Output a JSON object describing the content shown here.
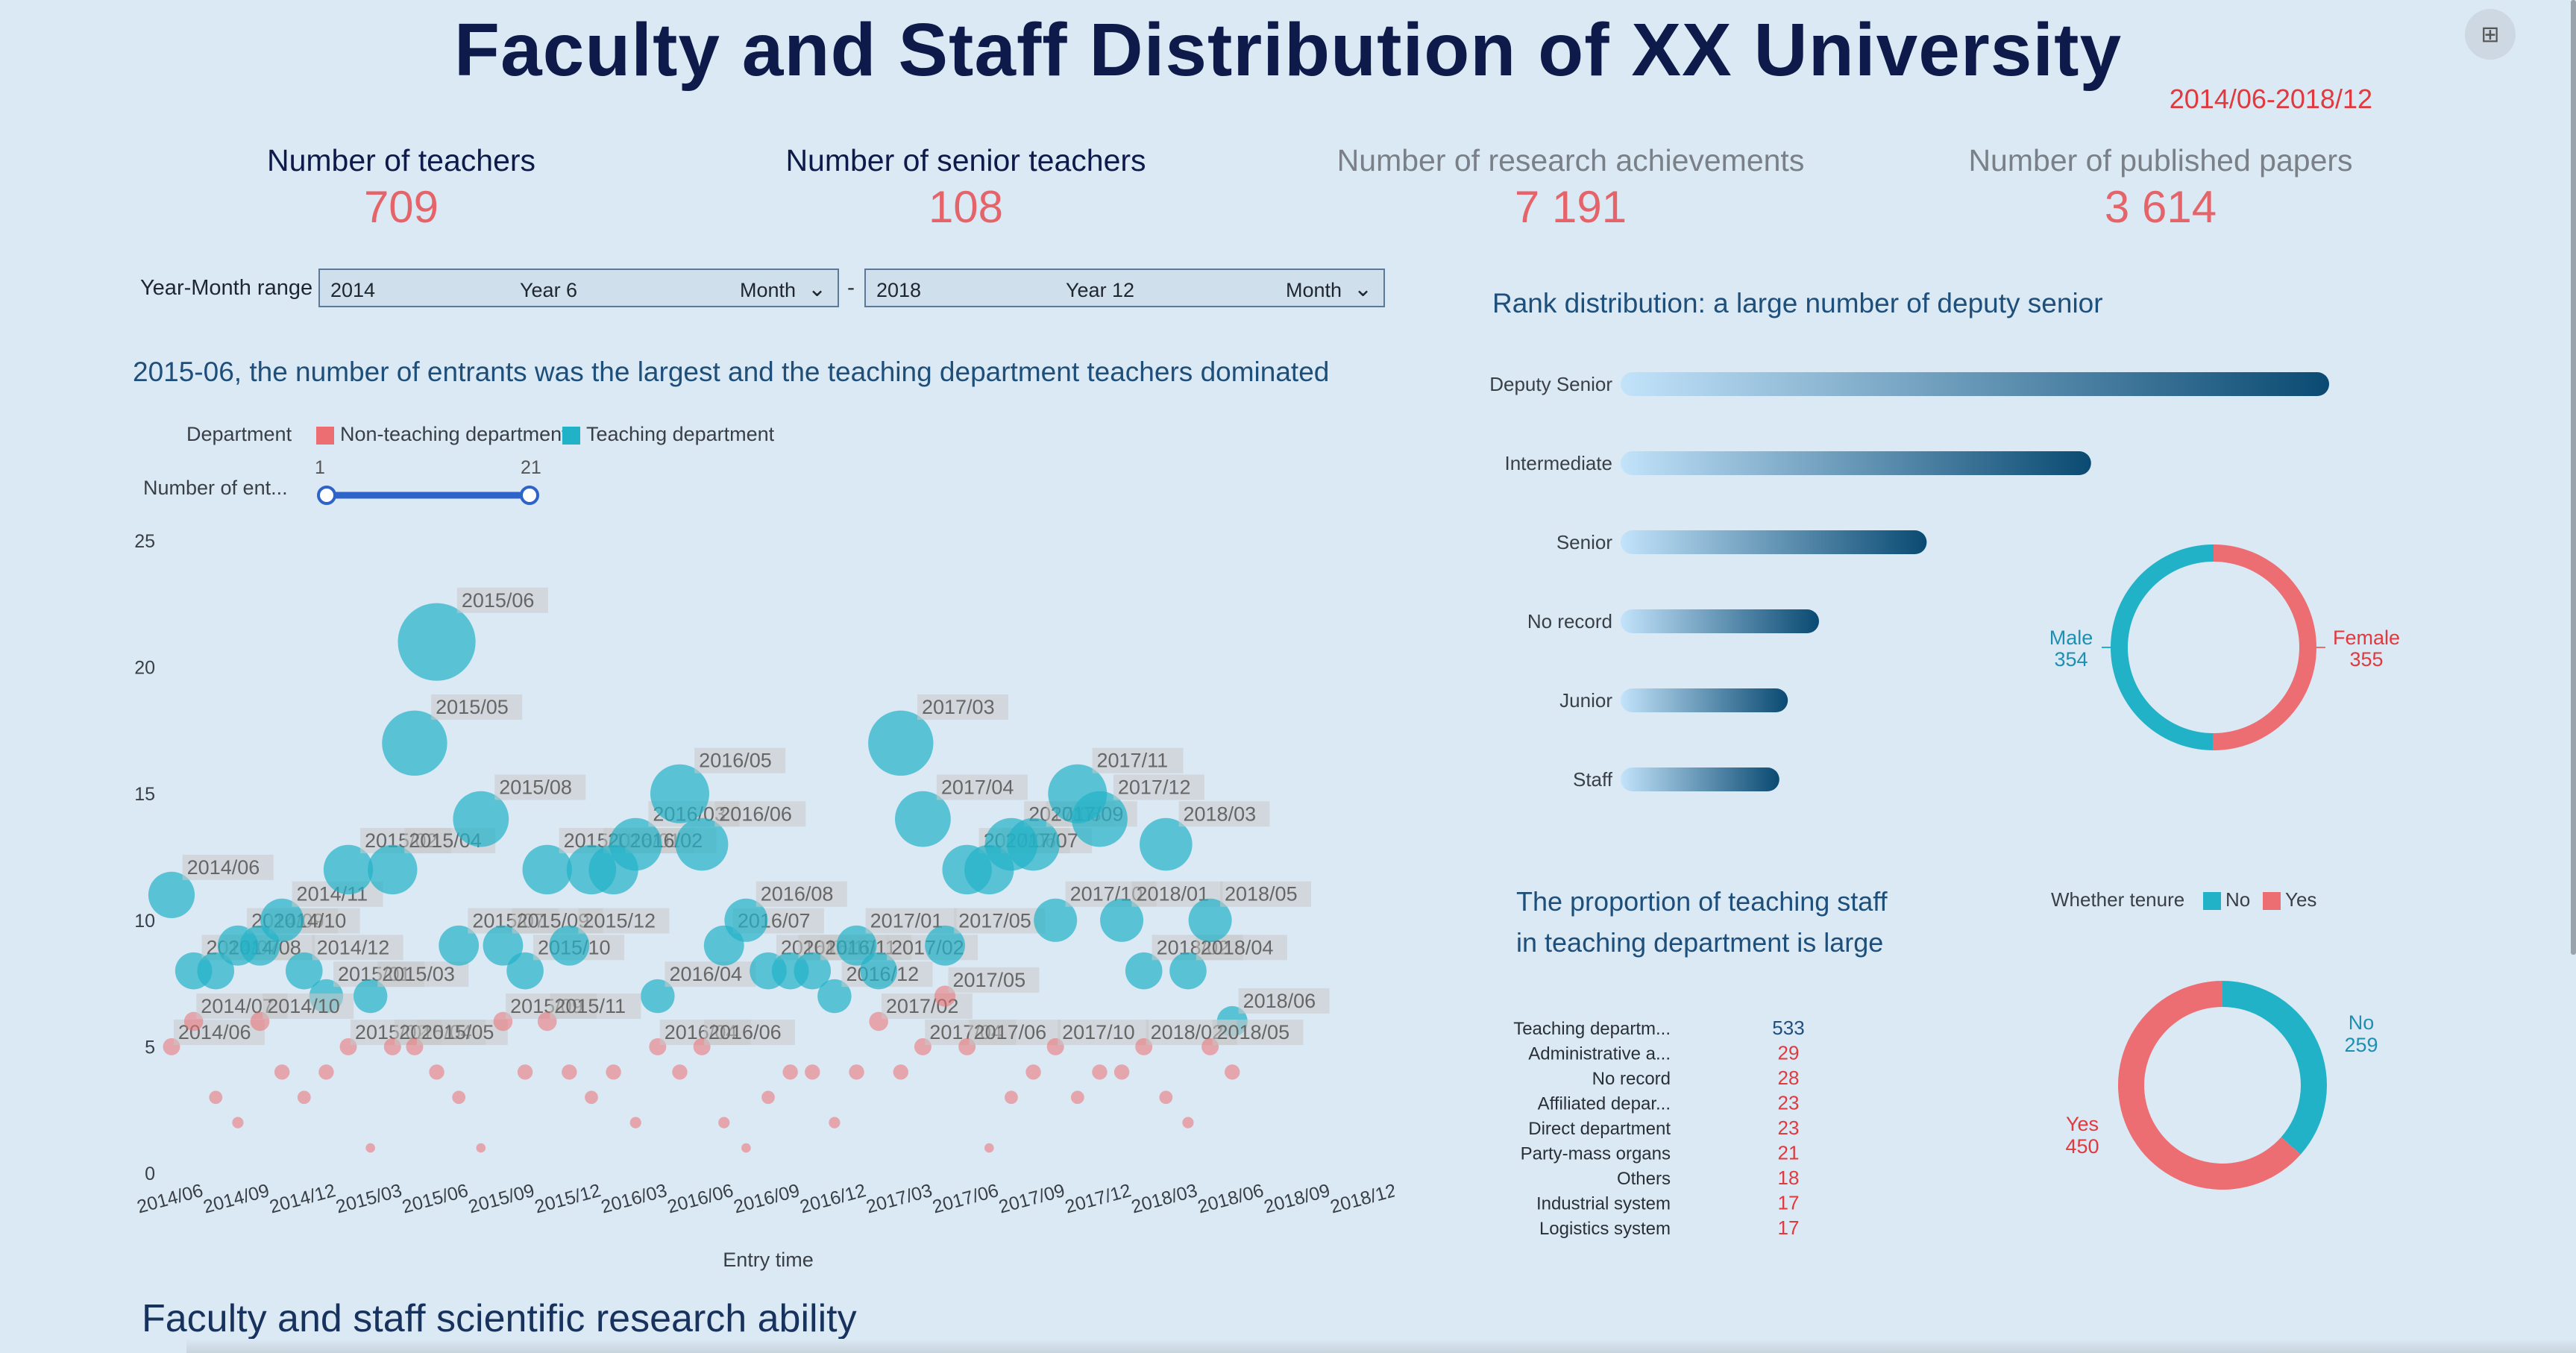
{
  "title": "Faculty and Staff Distribution of XX University",
  "date_range": "2014/06-2018/12",
  "kpis": [
    {
      "label": "Number of teachers",
      "value": "709"
    },
    {
      "label": "Number of senior teachers",
      "value": "108"
    },
    {
      "label": "Number of research achievements",
      "value": "7 191"
    },
    {
      "label": "Number of published papers",
      "value": "3 614"
    }
  ],
  "year_month": {
    "label": "Year-Month range",
    "start": {
      "year": "2014",
      "year_unit": "Year",
      "month": "6",
      "month_unit": "Month"
    },
    "dash": "-",
    "end": {
      "year": "2018",
      "year_unit": "Year",
      "month": "12",
      "month_unit": "Month"
    }
  },
  "scatter_title": "2015-06, the number of entrants was the largest and the teaching department teachers dominated",
  "rank_title": "Rank distribution: a large number of deputy senior",
  "prop_title": "The proportion of teaching staff in teaching department is large",
  "bottom_title": "Faculty and staff scientific research ability",
  "colors": {
    "teaching": "#22b2c8",
    "non_teaching": "#ec6e72",
    "accent_red": "#e0393e",
    "bar_dark": "#0a4a72",
    "bar_light": "#c2e3fa"
  },
  "chart_data": [
    {
      "type": "scatter",
      "title": "2015-06, the number of entrants was the largest and the teaching department teachers dominated",
      "xlabel": "Entry time",
      "ylabel": "",
      "ylim": [
        0,
        25
      ],
      "y_ticks": [
        "0",
        "5",
        "10",
        "15",
        "20",
        "25"
      ],
      "x_ticks": [
        "2014/06",
        "2014/09",
        "2014/12",
        "2015/03",
        "2015/06",
        "2015/09",
        "2015/12",
        "2016/03",
        "2016/06",
        "2016/09",
        "2016/12",
        "2017/03",
        "2017/06",
        "2017/09",
        "2017/12",
        "2018/03",
        "2018/06",
        "2018/09",
        "2018/12"
      ],
      "legend_title": "Department",
      "visual_map": {
        "label": "Number of ent...",
        "min": "1",
        "max": "21"
      },
      "series": [
        {
          "name": "Teaching department",
          "color": "#22b2c8",
          "points": [
            [
              "2014/06",
              11
            ],
            [
              "2014/07",
              8
            ],
            [
              "2014/08",
              8
            ],
            [
              "2014/09",
              9
            ],
            [
              "2014/10",
              9
            ],
            [
              "2014/11",
              10
            ],
            [
              "2014/12",
              8
            ],
            [
              "2015/01",
              7
            ],
            [
              "2015/02",
              12
            ],
            [
              "2015/03",
              7
            ],
            [
              "2015/04",
              12
            ],
            [
              "2015/05",
              17
            ],
            [
              "2015/06",
              21
            ],
            [
              "2015/07",
              9
            ],
            [
              "2015/08",
              14
            ],
            [
              "2015/09",
              9
            ],
            [
              "2015/10",
              8
            ],
            [
              "2015/11",
              12
            ],
            [
              "2015/12",
              9
            ],
            [
              "2016/01",
              12
            ],
            [
              "2016/02",
              12
            ],
            [
              "2016/03",
              13
            ],
            [
              "2016/04",
              7
            ],
            [
              "2016/05",
              15
            ],
            [
              "2016/06",
              13
            ],
            [
              "2016/07",
              9
            ],
            [
              "2016/08",
              10
            ],
            [
              "2016/09",
              8
            ],
            [
              "2016/10",
              8
            ],
            [
              "2016/11",
              8
            ],
            [
              "2016/12",
              7
            ],
            [
              "2017/01",
              9
            ],
            [
              "2017/02",
              8
            ],
            [
              "2017/03",
              17
            ],
            [
              "2017/04",
              14
            ],
            [
              "2017/05",
              9
            ],
            [
              "2017/06",
              12
            ],
            [
              "2017/07",
              12
            ],
            [
              "2017/08",
              13
            ],
            [
              "2017/09",
              13
            ],
            [
              "2017/10",
              10
            ],
            [
              "2017/11",
              15
            ],
            [
              "2017/12",
              14
            ],
            [
              "2018/01",
              10
            ],
            [
              "2018/02",
              8
            ],
            [
              "2018/03",
              13
            ],
            [
              "2018/04",
              8
            ],
            [
              "2018/05",
              10
            ],
            [
              "2018/06",
              6
            ]
          ]
        },
        {
          "name": "Non-teaching department",
          "color": "#ec6e72",
          "points": [
            [
              "2014/06",
              5
            ],
            [
              "2014/07",
              6
            ],
            [
              "2014/08",
              3
            ],
            [
              "2014/09",
              2
            ],
            [
              "2014/10",
              6
            ],
            [
              "2014/11",
              4
            ],
            [
              "2014/12",
              3
            ],
            [
              "2015/01",
              4
            ],
            [
              "2015/02",
              5
            ],
            [
              "2015/03",
              1
            ],
            [
              "2015/04",
              5
            ],
            [
              "2015/05",
              5
            ],
            [
              "2015/06",
              4
            ],
            [
              "2015/07",
              3
            ],
            [
              "2015/08",
              1
            ],
            [
              "2015/09",
              6
            ],
            [
              "2015/10",
              4
            ],
            [
              "2015/11",
              6
            ],
            [
              "2015/12",
              4
            ],
            [
              "2016/01",
              3
            ],
            [
              "2016/02",
              4
            ],
            [
              "2016/03",
              2
            ],
            [
              "2016/04",
              5
            ],
            [
              "2016/05",
              4
            ],
            [
              "2016/06",
              5
            ],
            [
              "2016/07",
              2
            ],
            [
              "2016/08",
              1
            ],
            [
              "2016/09",
              3
            ],
            [
              "2016/10",
              4
            ],
            [
              "2016/11",
              4
            ],
            [
              "2016/12",
              2
            ],
            [
              "2017/01",
              4
            ],
            [
              "2017/02",
              6
            ],
            [
              "2017/03",
              4
            ],
            [
              "2017/04",
              5
            ],
            [
              "2017/05",
              7
            ],
            [
              "2017/06",
              5
            ],
            [
              "2017/07",
              1
            ],
            [
              "2017/08",
              3
            ],
            [
              "2017/09",
              4
            ],
            [
              "2017/10",
              5
            ],
            [
              "2017/11",
              3
            ],
            [
              "2017/12",
              4
            ],
            [
              "2018/01",
              4
            ],
            [
              "2018/02",
              5
            ],
            [
              "2018/03",
              3
            ],
            [
              "2018/04",
              2
            ],
            [
              "2018/05",
              5
            ],
            [
              "2018/06",
              4
            ]
          ]
        }
      ]
    },
    {
      "type": "bar",
      "orientation": "horizontal",
      "title": "Rank distribution: a large number of deputy senior",
      "categories": [
        "Deputy Senior",
        "Intermediate",
        "Senior",
        "No record",
        "Junior",
        "Staff"
      ],
      "values": [
        250,
        166,
        108,
        70,
        59,
        56
      ]
    },
    {
      "type": "pie",
      "variant": "donut",
      "categories": [
        "Male",
        "Female"
      ],
      "values": [
        354,
        355
      ],
      "colors": [
        "#22b2c8",
        "#ec6e72"
      ]
    },
    {
      "type": "table",
      "title": "The proportion of teaching staff in teaching department is large",
      "rows": [
        {
          "name": "Teaching departm...",
          "value": "533"
        },
        {
          "name": "Administrative a...",
          "value": "29"
        },
        {
          "name": "No record",
          "value": "28"
        },
        {
          "name": "Affiliated depar...",
          "value": "23"
        },
        {
          "name": "Direct department",
          "value": "23"
        },
        {
          "name": "Party-mass organs",
          "value": "21"
        },
        {
          "name": "Others",
          "value": "18"
        },
        {
          "name": "Industrial system",
          "value": "17"
        },
        {
          "name": "Logistics system",
          "value": "17"
        }
      ]
    },
    {
      "type": "pie",
      "variant": "donut",
      "legend_title": "Whether tenure",
      "categories": [
        "No",
        "Yes"
      ],
      "values": [
        259,
        450
      ],
      "colors": [
        "#22b2c8",
        "#ec6e72"
      ]
    }
  ]
}
